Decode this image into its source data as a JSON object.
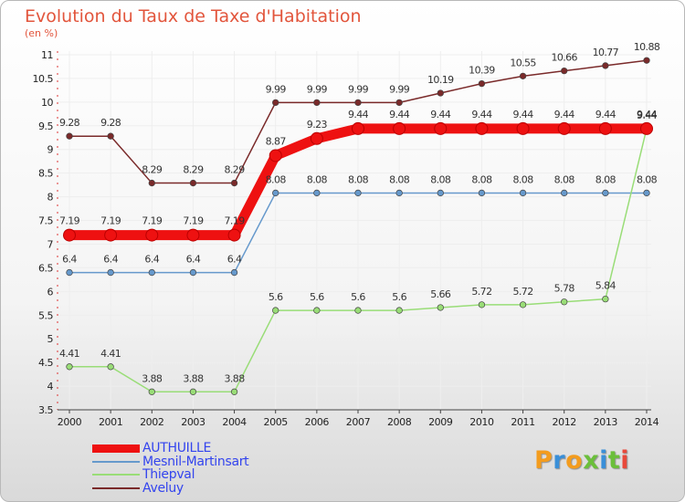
{
  "title": "Evolution du Taux de Taxe d'Habitation",
  "subtitle": "(en %)",
  "logo_text": "Proxiti",
  "logo_colors": [
    "#f39c1e",
    "#3a8fd8",
    "#f39c1e",
    "#6bbf3b",
    "#3a8fd8",
    "#6bbf3b",
    "#e8483a"
  ],
  "colors": {
    "title": "#e2553c",
    "legend_text": "#3344ee",
    "axis_text": "#222222",
    "grid": "#eeeeee"
  },
  "legend": [
    {
      "label": "AUTHUILLE",
      "color": "#ee1111",
      "thick": true
    },
    {
      "label": "Mesnil-Martinsart",
      "color": "#6699cc"
    },
    {
      "label": "Thiepval",
      "color": "#99dd77"
    },
    {
      "label": "Aveluy",
      "color": "#7a2a2a"
    }
  ],
  "chart_data": {
    "type": "line",
    "title": "Evolution du Taux de Taxe d'Habitation",
    "subtitle": "(en %)",
    "xlabel": "",
    "ylabel": "",
    "x": [
      "2000",
      "2001",
      "2002",
      "2003",
      "2004",
      "2005",
      "2006",
      "2007",
      "2008",
      "2009",
      "2010",
      "2011",
      "2012",
      "2013",
      "2014"
    ],
    "ylim": [
      3.5,
      11
    ],
    "yticks": [
      "3.5",
      "4",
      "4.5",
      "5",
      "5.5",
      "6",
      "6.5",
      "7",
      "7.5",
      "8",
      "8.5",
      "9",
      "9.5",
      "10",
      "10.5",
      "11"
    ],
    "grid": true,
    "legend_position": "bottom-left",
    "series": [
      {
        "name": "AUTHUILLE",
        "color": "#ee1111",
        "values": [
          7.19,
          7.19,
          7.19,
          7.19,
          7.19,
          8.87,
          9.23,
          9.44,
          9.44,
          9.44,
          9.44,
          9.44,
          9.44,
          9.44,
          9.44
        ],
        "labels": [
          "7.19",
          "7.19",
          "7.19",
          "7.19",
          "7.19",
          "8.87",
          "9.23",
          "9.44",
          "9.44",
          "9.44",
          "9.44",
          "9.44",
          "9.44",
          "9.44",
          "9.44"
        ]
      },
      {
        "name": "Mesnil-Martinsart",
        "color": "#6699cc",
        "values": [
          6.4,
          6.4,
          6.4,
          6.4,
          6.4,
          8.08,
          8.08,
          8.08,
          8.08,
          8.08,
          8.08,
          8.08,
          8.08,
          8.08,
          8.08
        ],
        "labels": [
          "6.4",
          "6.4",
          "6.4",
          "6.4",
          "6.4",
          "8.08",
          "8.08",
          "8.08",
          "8.08",
          "8.08",
          "8.08",
          "8.08",
          "8.08",
          "8.08",
          "8.08"
        ]
      },
      {
        "name": "Thiepval",
        "color": "#99dd77",
        "values": [
          4.41,
          4.41,
          3.88,
          3.88,
          3.88,
          5.6,
          5.6,
          5.6,
          5.6,
          5.66,
          5.72,
          5.72,
          5.78,
          5.84,
          9.44
        ],
        "labels": [
          "4.41",
          "4.41",
          "3.88",
          "3.88",
          "3.88",
          "5.6",
          "5.6",
          "5.6",
          "5.6",
          "5.66",
          "5.72",
          "5.72",
          "5.78",
          "5.84",
          "9.44"
        ]
      },
      {
        "name": "Aveluy",
        "color": "#7a2a2a",
        "values": [
          9.28,
          9.28,
          8.29,
          8.29,
          8.29,
          9.99,
          9.99,
          9.99,
          9.99,
          10.19,
          10.39,
          10.55,
          10.66,
          10.77,
          10.88
        ],
        "labels": [
          "9.28",
          "9.28",
          "8.29",
          "8.29",
          "8.29",
          "9.99",
          "9.99",
          "9.99",
          "9.99",
          "10.19",
          "10.39",
          "10.55",
          "10.66",
          "10.77",
          "10.88"
        ]
      }
    ]
  }
}
